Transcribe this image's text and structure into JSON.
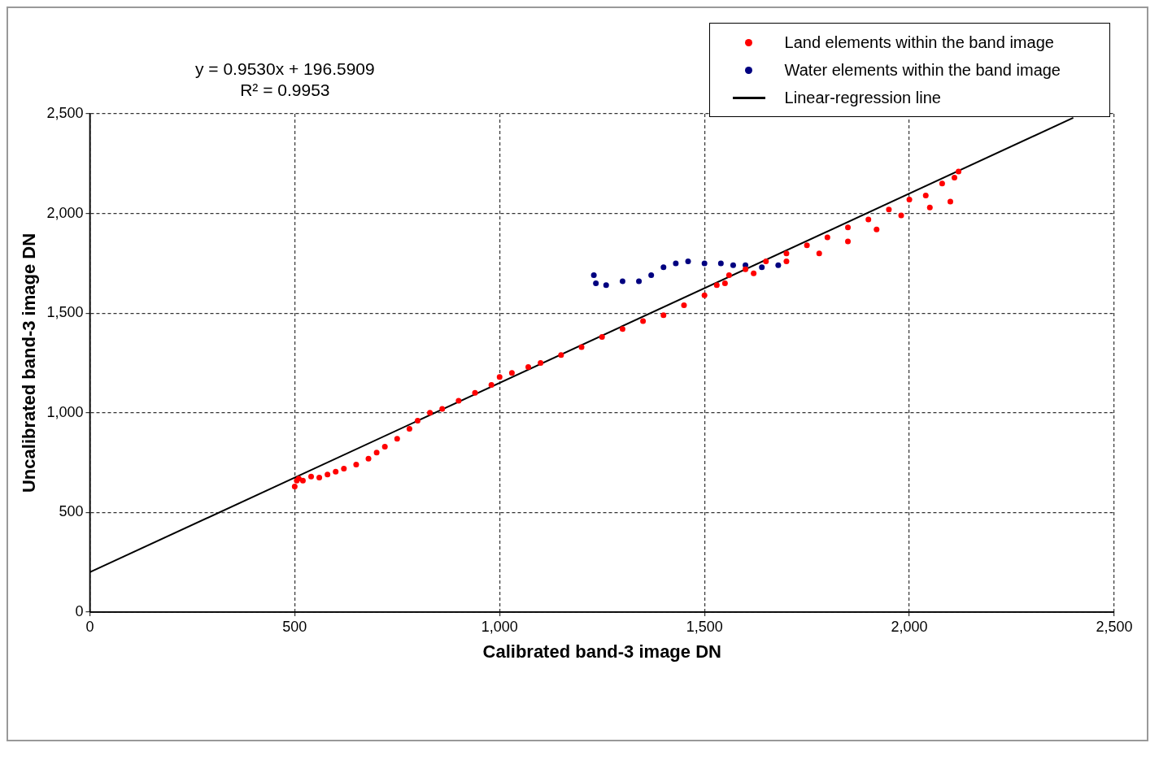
{
  "chart_data": {
    "type": "scatter",
    "xlabel": "Calibrated band-3 image DN",
    "ylabel": "Uncalibrated band-3 image DN",
    "annotations": [
      "y = 0.9530x + 196.5909",
      "R² = 0.9953"
    ],
    "series": [
      {
        "name": "Land elements within the band image",
        "color": "#ff0000",
        "marker": "circle",
        "x": [
          500,
          505,
          510,
          520,
          540,
          560,
          580,
          600,
          620,
          650,
          680,
          700,
          720,
          750,
          780,
          800,
          830,
          860,
          900,
          940,
          980,
          1000,
          1030,
          1070,
          1100,
          1150,
          1200,
          1250,
          1300,
          1350,
          1400,
          1450,
          1500,
          1530,
          1560,
          1600,
          1650,
          1700,
          1750,
          1800,
          1850,
          1900,
          1950,
          2000,
          2040,
          2080,
          2110,
          2120,
          2100,
          2050,
          1980,
          1920,
          1850,
          1780,
          1700,
          1620,
          1550
        ],
        "values": [
          630,
          660,
          670,
          660,
          680,
          675,
          690,
          705,
          720,
          740,
          770,
          800,
          830,
          870,
          920,
          960,
          1000,
          1020,
          1060,
          1100,
          1140,
          1180,
          1200,
          1230,
          1250,
          1290,
          1330,
          1380,
          1420,
          1460,
          1490,
          1540,
          1590,
          1640,
          1690,
          1720,
          1760,
          1800,
          1840,
          1880,
          1930,
          1970,
          2020,
          2070,
          2090,
          2150,
          2180,
          2210,
          2060,
          2030,
          1990,
          1920,
          1860,
          1800,
          1760,
          1700,
          1650
        ]
      },
      {
        "name": "Water elements within the band image",
        "color": "#000080",
        "marker": "circle",
        "x": [
          1230,
          1235,
          1260,
          1300,
          1340,
          1370,
          1400,
          1430,
          1460,
          1500,
          1540,
          1570,
          1600,
          1640,
          1680
        ],
        "values": [
          1690,
          1650,
          1640,
          1660,
          1660,
          1690,
          1730,
          1750,
          1760,
          1750,
          1750,
          1740,
          1740,
          1730,
          1740
        ]
      },
      {
        "name": "Linear-regression line",
        "type": "line",
        "color": "#000000",
        "x": [
          0,
          2400
        ],
        "values": [
          200,
          2480
        ]
      }
    ],
    "xlim": [
      0,
      2500
    ],
    "xticks": [
      {
        "value": 0,
        "label": "0"
      },
      {
        "value": 500,
        "label": "500"
      },
      {
        "value": 1000,
        "label": "1,000"
      },
      {
        "value": 1500,
        "label": "1,500"
      },
      {
        "value": 2000,
        "label": "2,000"
      },
      {
        "value": 2500,
        "label": "2,500"
      }
    ],
    "ylim": [
      0,
      2500
    ],
    "yticks": [
      {
        "value": 0,
        "label": "0"
      },
      {
        "value": 500,
        "label": "500"
      },
      {
        "value": 1000,
        "label": "1,000"
      },
      {
        "value": 1500,
        "label": "1,500"
      },
      {
        "value": 2000,
        "label": "2,000"
      },
      {
        "value": 2500,
        "label": "2,500"
      }
    ],
    "grid": true,
    "legend": "top right"
  }
}
